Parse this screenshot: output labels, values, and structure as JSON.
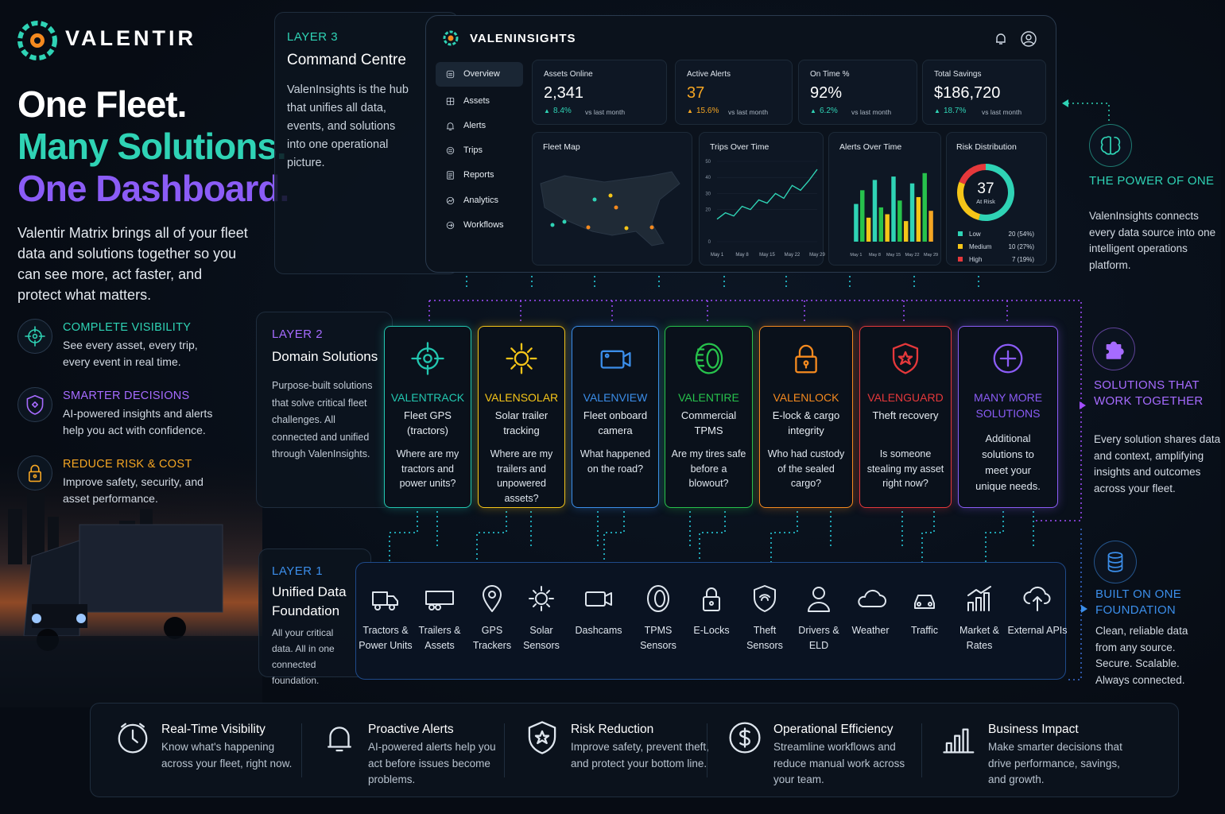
{
  "brand": {
    "name": "VALENTIR"
  },
  "hero": {
    "lines": [
      "One Fleet.",
      "Many Solutions.",
      "One Dashboard."
    ],
    "text": "Valentir Matrix brings all of your fleet data and solutions together so you can see more, act faster, and protect what matters."
  },
  "features": [
    {
      "title": "COMPLETE VISIBILITY",
      "text": "See every asset, every trip, every event in real time.",
      "color": "#2fd3b5"
    },
    {
      "title": "SMARTER DECISIONS",
      "text": "AI-powered insights and alerts help you act with confidence.",
      "color": "#a66bff"
    },
    {
      "title": "REDUCE RISK & COST",
      "text": "Improve safety, security, and asset performance.",
      "color": "#f5a623"
    }
  ],
  "layer3": {
    "label": "LAYER 3",
    "title": "Command Centre",
    "text": "ValenInsights is the hub that unifies all data, events, and solutions into one operational picture."
  },
  "dashboard": {
    "brand": "VALENINSIGHTS",
    "nav": [
      "Overview",
      "Assets",
      "Alerts",
      "Trips",
      "Reports",
      "Analytics",
      "Workflows"
    ],
    "kpis": [
      {
        "label": "Assets Online",
        "value": "2,341",
        "change": "8.4%",
        "note": "vs last month",
        "color": "#ffffff"
      },
      {
        "label": "Active Alerts",
        "value": "37",
        "change": "15.6%",
        "note": "vs last month",
        "color": "#f5a623"
      },
      {
        "label": "On Time %",
        "value": "92%",
        "change": "6.2%",
        "note": "vs last month",
        "color": "#ffffff"
      },
      {
        "label": "Total Savings",
        "value": "$186,720",
        "change": "18.7%",
        "note": "vs last month",
        "color": "#ffffff"
      }
    ],
    "fleet_map": {
      "title": "Fleet Map"
    },
    "trips": {
      "type": "line",
      "title": "Trips Over Time",
      "categories": [
        "May 1",
        null,
        null,
        "May 8",
        null,
        null,
        "May 15",
        null,
        null,
        "May 22",
        null,
        null,
        "May 29"
      ],
      "values": [
        14,
        18,
        16,
        22,
        20,
        26,
        24,
        30,
        27,
        35,
        32,
        38,
        45
      ],
      "color": "#2fd3b5",
      "ylim": [
        0,
        50
      ],
      "yticks": [
        0,
        20,
        30,
        40,
        50
      ]
    },
    "alerts": {
      "type": "bar",
      "title": "Alerts Over Time",
      "categories": [
        "May 1",
        null,
        null,
        "May 8",
        null,
        null,
        "May 15",
        null,
        null,
        "May 22",
        null,
        null,
        "May 29"
      ],
      "values": [
        22,
        30,
        14,
        36,
        20,
        16,
        38,
        24,
        12,
        34,
        26,
        40,
        18
      ],
      "colors": [
        "#2fd3b5",
        "#27c24c",
        "#f5c518",
        "#2fd3b5",
        "#27c24c",
        "#f5c518",
        "#2fd3b5",
        "#27c24c",
        "#f5c518",
        "#2fd3b5",
        "#f5c518",
        "#27c24c",
        "#f5a623"
      ],
      "ylim": [
        0,
        45
      ]
    },
    "risk": {
      "type": "donut",
      "title": "Risk Distribution",
      "center_value": "37",
      "center_label": "At Risk",
      "categories": [
        "Low",
        "Medium",
        "High"
      ],
      "values": [
        54,
        27,
        19
      ],
      "value_labels": [
        "20 (54%)",
        "10 (27%)",
        "7 (19%)"
      ],
      "colors": [
        "#2fd3b5",
        "#f5c518",
        "#e5383b"
      ]
    }
  },
  "layer2": {
    "label": "LAYER 2",
    "title": "Domain Solutions",
    "text": "Purpose-built solutions that solve critical fleet challenges. All connected and unified through ValenInsights.",
    "solutions": [
      {
        "name": "VALENTRACK",
        "subtitle": "Fleet GPS (tractors)",
        "question": "Where are my tractors and power units?",
        "color": "#22c7b0"
      },
      {
        "name": "VALENSOLAR",
        "subtitle": "Solar trailer tracking",
        "question": "Where are my trailers and unpowered assets?",
        "color": "#f5c518"
      },
      {
        "name": "VALENVIEW",
        "subtitle": "Fleet onboard camera",
        "question": "What happened on the road?",
        "color": "#3b8eea"
      },
      {
        "name": "VALENTIRE",
        "subtitle": "Commercial TPMS",
        "question": "Are my tires safe before a blowout?",
        "color": "#27c24c"
      },
      {
        "name": "VALENLOCK",
        "subtitle": "E-lock & cargo integrity",
        "question": "Who had custody of the sealed cargo?",
        "color": "#f58a1f"
      },
      {
        "name": "VALENGUARD",
        "subtitle": "Theft recovery",
        "question": "Is someone stealing my asset right now?",
        "color": "#e5383b"
      },
      {
        "name": "MANY MORE SOLUTIONS",
        "question": "Additional solutions to meet your unique needs.",
        "color": "#8b5cf6"
      }
    ]
  },
  "layer1": {
    "label": "LAYER 1",
    "title": "Unified Data Foundation",
    "text": "All your critical data. All in one connected foundation.",
    "sources": [
      "Tractors & Power Units",
      "Trailers & Assets",
      "GPS Trackers",
      "Solar Sensors",
      "Dashcams",
      "TPMS Sensors",
      "E-Locks",
      "Theft Sensors",
      "Drivers & ELD",
      "Weather",
      "Traffic",
      "Market & Rates",
      "External APIs"
    ]
  },
  "side": [
    {
      "title": "THE POWER OF ONE",
      "text": "ValenInsights connects every data source into one intelligent operations platform."
    },
    {
      "title": "SOLUTIONS THAT WORK TOGETHER",
      "text": "Every solution shares data and context, amplifying insights and outcomes across your fleet."
    },
    {
      "title": "BUILT ON ONE FOUNDATION",
      "text": "Clean, reliable data from any source. Secure. Scalable. Always connected."
    }
  ],
  "benefits": [
    {
      "title": "Real-Time Visibility",
      "text": "Know what's happening across your fleet, right now."
    },
    {
      "title": "Proactive Alerts",
      "text": "AI-powered alerts help you act before issues become problems."
    },
    {
      "title": "Risk Reduction",
      "text": "Improve safety, prevent theft, and protect your bottom line."
    },
    {
      "title": "Operational Efficiency",
      "text": "Streamline workflows and reduce manual work across your team."
    },
    {
      "title": "Business Impact",
      "text": "Make smarter decisions that drive performance, savings, and growth."
    }
  ]
}
